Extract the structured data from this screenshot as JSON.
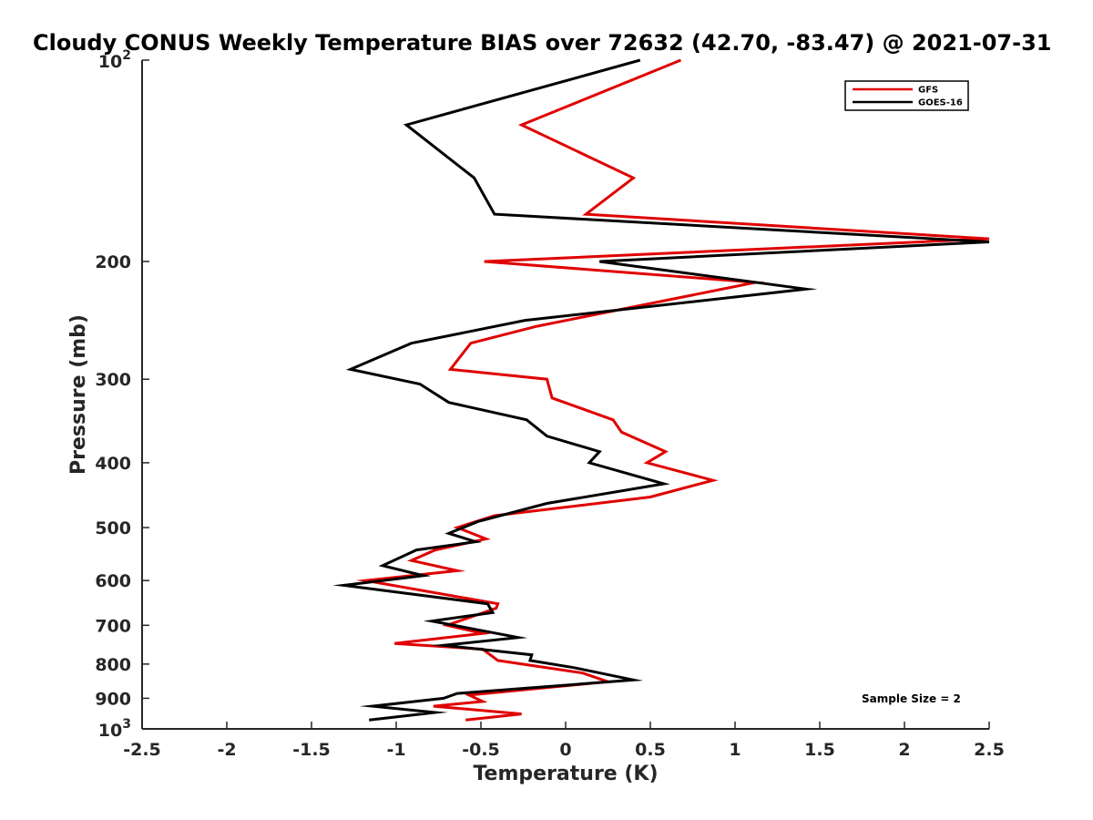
{
  "chart_data": {
    "type": "line",
    "title": "Cloudy CONUS Weekly Temperature BIAS over 72632 (42.70, -83.47) @ 2021-07-31",
    "xlabel": "Temperature (K)",
    "ylabel": "Pressure (mb)",
    "xlim": [
      -2.5,
      2.5
    ],
    "ylim": [
      100,
      1000
    ],
    "y_scale": "log",
    "y_reversed": true,
    "x_ticks": [
      -2.5,
      -2,
      -1.5,
      -1,
      -0.5,
      0,
      0.5,
      1,
      1.5,
      2,
      2.5
    ],
    "x_tick_labels": [
      "-2.5",
      "-2",
      "-1.5",
      "-1",
      "-0.5",
      "0",
      "0.5",
      "1",
      "1.5",
      "2",
      "2.5"
    ],
    "y_ticks": [
      200,
      300,
      400,
      500,
      600,
      700,
      800,
      900
    ],
    "y_tick_labels": [
      "200",
      "300",
      "400",
      "500",
      "600",
      "700",
      "800",
      "900"
    ],
    "y_tick_top": {
      "base": "10",
      "exp": "2",
      "value": 100
    },
    "y_tick_bottom": {
      "base": "10",
      "exp": "3",
      "value": 1000
    },
    "grid": false,
    "legend_position": "top-right",
    "annotation": "Sample Size = 2",
    "series": [
      {
        "name": "GFS",
        "color": "#e00000",
        "points": [
          {
            "x": 0.68,
            "p": 100
          },
          {
            "x": -0.26,
            "p": 125
          },
          {
            "x": 0.4,
            "p": 150
          },
          {
            "x": 0.12,
            "p": 170
          },
          {
            "x": 2.5,
            "p": 185
          },
          {
            "x": -0.48,
            "p": 200
          },
          {
            "x": 1.12,
            "p": 215
          },
          {
            "x": -0.17,
            "p": 250
          },
          {
            "x": -0.56,
            "p": 265
          },
          {
            "x": -0.68,
            "p": 290
          },
          {
            "x": -0.11,
            "p": 300
          },
          {
            "x": -0.08,
            "p": 320
          },
          {
            "x": 0.28,
            "p": 345
          },
          {
            "x": 0.33,
            "p": 360
          },
          {
            "x": 0.59,
            "p": 385
          },
          {
            "x": 0.48,
            "p": 400
          },
          {
            "x": 0.87,
            "p": 425
          },
          {
            "x": 0.5,
            "p": 450
          },
          {
            "x": -0.42,
            "p": 480
          },
          {
            "x": -0.64,
            "p": 500
          },
          {
            "x": -0.47,
            "p": 520
          },
          {
            "x": -0.77,
            "p": 540
          },
          {
            "x": -0.91,
            "p": 560
          },
          {
            "x": -0.64,
            "p": 580
          },
          {
            "x": -1.18,
            "p": 600
          },
          {
            "x": -0.4,
            "p": 650
          },
          {
            "x": -0.41,
            "p": 660
          },
          {
            "x": -0.7,
            "p": 700
          },
          {
            "x": -0.49,
            "p": 720
          },
          {
            "x": -1.01,
            "p": 745
          },
          {
            "x": -0.49,
            "p": 760
          },
          {
            "x": -0.4,
            "p": 790
          },
          {
            "x": 0.1,
            "p": 825
          },
          {
            "x": 0.25,
            "p": 850
          },
          {
            "x": -0.57,
            "p": 890
          },
          {
            "x": -0.49,
            "p": 910
          },
          {
            "x": -0.78,
            "p": 925
          },
          {
            "x": -0.26,
            "p": 950
          },
          {
            "x": -0.59,
            "p": 970
          }
        ]
      },
      {
        "name": "GOES-16",
        "color": "#000000",
        "points": [
          {
            "x": 0.44,
            "p": 100
          },
          {
            "x": -0.94,
            "p": 125
          },
          {
            "x": -0.54,
            "p": 150
          },
          {
            "x": -0.42,
            "p": 170
          },
          {
            "x": 2.5,
            "p": 187
          },
          {
            "x": 0.2,
            "p": 200
          },
          {
            "x": 1.42,
            "p": 220
          },
          {
            "x": -0.24,
            "p": 245
          },
          {
            "x": -0.91,
            "p": 265
          },
          {
            "x": -1.27,
            "p": 290
          },
          {
            "x": -0.86,
            "p": 305
          },
          {
            "x": -0.69,
            "p": 325
          },
          {
            "x": -0.23,
            "p": 345
          },
          {
            "x": -0.11,
            "p": 365
          },
          {
            "x": 0.2,
            "p": 385
          },
          {
            "x": 0.14,
            "p": 400
          },
          {
            "x": 0.58,
            "p": 430
          },
          {
            "x": -0.11,
            "p": 460
          },
          {
            "x": -0.52,
            "p": 490
          },
          {
            "x": -0.69,
            "p": 510
          },
          {
            "x": -0.53,
            "p": 525
          },
          {
            "x": -0.88,
            "p": 540
          },
          {
            "x": -1.08,
            "p": 570
          },
          {
            "x": -0.84,
            "p": 590
          },
          {
            "x": -1.31,
            "p": 610
          },
          {
            "x": -0.46,
            "p": 650
          },
          {
            "x": -0.43,
            "p": 670
          },
          {
            "x": -0.79,
            "p": 690
          },
          {
            "x": -0.28,
            "p": 730
          },
          {
            "x": -0.72,
            "p": 750
          },
          {
            "x": -0.2,
            "p": 775
          },
          {
            "x": -0.21,
            "p": 790
          },
          {
            "x": 0.05,
            "p": 810
          },
          {
            "x": 0.4,
            "p": 845
          },
          {
            "x": -0.64,
            "p": 885
          },
          {
            "x": -0.72,
            "p": 900
          },
          {
            "x": -1.14,
            "p": 925
          },
          {
            "x": -0.77,
            "p": 945
          },
          {
            "x": -1.16,
            "p": 970
          }
        ]
      }
    ]
  }
}
